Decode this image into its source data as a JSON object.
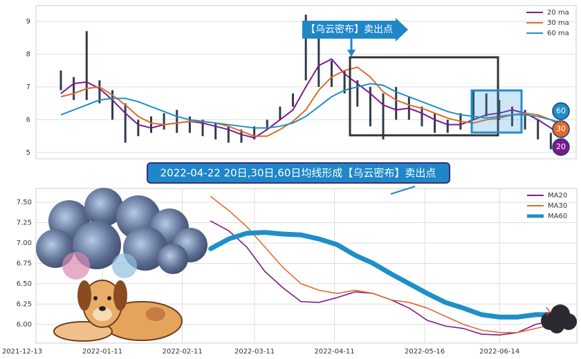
{
  "chart_data": [
    {
      "type": "candlestick",
      "ylim": [
        4.81,
        9.48
      ],
      "yticks": [
        5,
        6,
        7,
        8,
        9
      ],
      "grid": true,
      "legend": "upper right",
      "annotation": "【乌云密布】卖出点",
      "badges": [
        60,
        30,
        20
      ],
      "candles": {
        "color": "#2f3b4c",
        "high": [
          7.5,
          7.3,
          8.7,
          7.2,
          6.9,
          6.5,
          6.0,
          6.1,
          6.2,
          6.3,
          6.1,
          6.0,
          5.9,
          5.8,
          5.7,
          5.8,
          6.0,
          6.4,
          6.8,
          9.2,
          8.5,
          7.8,
          7.5,
          7.2,
          7.0,
          6.8,
          7.0,
          6.7,
          6.4,
          6.2,
          6.0,
          6.2,
          6.9,
          6.8,
          6.6,
          6.4,
          6.3,
          6.0,
          5.6,
          5.3
        ],
        "low": [
          6.9,
          6.6,
          6.6,
          6.5,
          6.0,
          5.3,
          5.5,
          5.6,
          5.7,
          5.6,
          5.6,
          5.5,
          5.4,
          5.3,
          5.3,
          5.4,
          5.7,
          6.0,
          6.4,
          7.2,
          7.0,
          7.0,
          6.8,
          6.4,
          5.8,
          5.4,
          6.0,
          6.0,
          5.8,
          5.6,
          5.6,
          5.7,
          6.0,
          6.1,
          6.0,
          5.8,
          5.7,
          5.4,
          5.1,
          5.0
        ]
      },
      "series": [
        {
          "name": "20 ma",
          "color": "#7b1a8c",
          "values": [
            6.8,
            7.1,
            7.15,
            6.95,
            6.6,
            6.2,
            5.85,
            5.75,
            5.85,
            5.9,
            5.95,
            5.9,
            5.8,
            5.7,
            5.55,
            5.45,
            5.7,
            6.0,
            6.3,
            7.0,
            7.65,
            7.85,
            7.4,
            7.1,
            6.8,
            6.45,
            6.3,
            6.35,
            6.2,
            6.0,
            5.85,
            5.85,
            6.0,
            6.15,
            6.2,
            6.3,
            6.2,
            6.0,
            5.75,
            5.45
          ]
        },
        {
          "name": "30 ma",
          "color": "#e06a2b",
          "values": [
            6.7,
            6.8,
            6.95,
            7.0,
            6.75,
            6.45,
            6.1,
            5.9,
            5.85,
            5.9,
            5.95,
            5.95,
            5.9,
            5.8,
            5.65,
            5.5,
            5.5,
            5.7,
            5.95,
            6.3,
            6.9,
            7.3,
            7.5,
            7.6,
            7.3,
            6.85,
            6.6,
            6.45,
            6.35,
            6.2,
            6.05,
            5.95,
            5.9,
            6.0,
            6.05,
            6.15,
            6.2,
            6.15,
            6.0,
            5.75
          ]
        },
        {
          "name": "60 ma",
          "color": "#1f8fc8",
          "values": [
            6.15,
            6.3,
            6.45,
            6.6,
            6.65,
            6.65,
            6.55,
            6.4,
            6.25,
            6.1,
            6.0,
            5.95,
            5.9,
            5.85,
            5.8,
            5.75,
            5.75,
            5.8,
            5.9,
            6.1,
            6.4,
            6.7,
            6.9,
            7.0,
            7.1,
            7.05,
            6.85,
            6.7,
            6.55,
            6.4,
            6.25,
            6.15,
            6.1,
            6.05,
            6.1,
            6.15,
            6.15,
            6.1,
            6.0,
            5.9
          ]
        }
      ]
    },
    {
      "type": "line",
      "xlim": [
        "2021-12-13",
        "2022-07-14"
      ],
      "xticks": [
        "2021-12-13",
        "2022-01-11",
        "2022-02-11",
        "2022-03-11",
        "2022-04-11",
        "2022-05-16",
        "2022-06-14"
      ],
      "ylim": [
        5.77,
        7.67
      ],
      "yticks": [
        {
          "value": 6,
          "label": "6.00"
        },
        {
          "value": 6.25,
          "label": "6.25"
        },
        {
          "value": 6.5,
          "label": "6.50"
        },
        {
          "value": 6.75,
          "label": "6.75"
        },
        {
          "value": 7,
          "label": "7.00"
        },
        {
          "value": 7.25,
          "label": "7.25"
        },
        {
          "value": 7.5,
          "label": "7.50"
        }
      ],
      "grid": true,
      "legend": "upper right",
      "x": [
        "2022-02-22",
        "2022-03-01",
        "2022-03-08",
        "2022-03-15",
        "2022-03-22",
        "2022-03-29",
        "2022-04-05",
        "2022-04-12",
        "2022-04-19",
        "2022-04-26",
        "2022-05-03",
        "2022-05-10",
        "2022-05-17",
        "2022-05-24",
        "2022-05-31",
        "2022-06-07",
        "2022-06-14",
        "2022-06-21",
        "2022-06-28",
        "2022-07-05"
      ],
      "series": [
        {
          "name": "MA20",
          "color": "#7b1a8c",
          "values": [
            7.27,
            7.15,
            6.95,
            6.65,
            6.45,
            6.28,
            6.27,
            6.33,
            6.4,
            6.38,
            6.3,
            6.2,
            6.05,
            5.98,
            5.95,
            5.88,
            5.87,
            5.9,
            6.0,
            6.05
          ]
        },
        {
          "name": "MA30",
          "color": "#e06a2b",
          "values": [
            7.57,
            7.4,
            7.2,
            6.95,
            6.7,
            6.5,
            6.42,
            6.38,
            6.42,
            6.38,
            6.3,
            6.27,
            6.2,
            6.1,
            6.0,
            5.93,
            5.9,
            5.9,
            5.95,
            6.0
          ]
        },
        {
          "name": "MA60",
          "color": "#1f8fc8",
          "values": [
            6.93,
            7.05,
            7.12,
            7.13,
            7.11,
            7.1,
            7.05,
            6.98,
            6.85,
            6.75,
            6.62,
            6.5,
            6.38,
            6.27,
            6.2,
            6.12,
            6.09,
            6.09,
            6.12,
            6.12
          ]
        }
      ]
    }
  ],
  "banner": "2022-04-22 20日,30日,60日均线形成【乌云密布】卖出点"
}
